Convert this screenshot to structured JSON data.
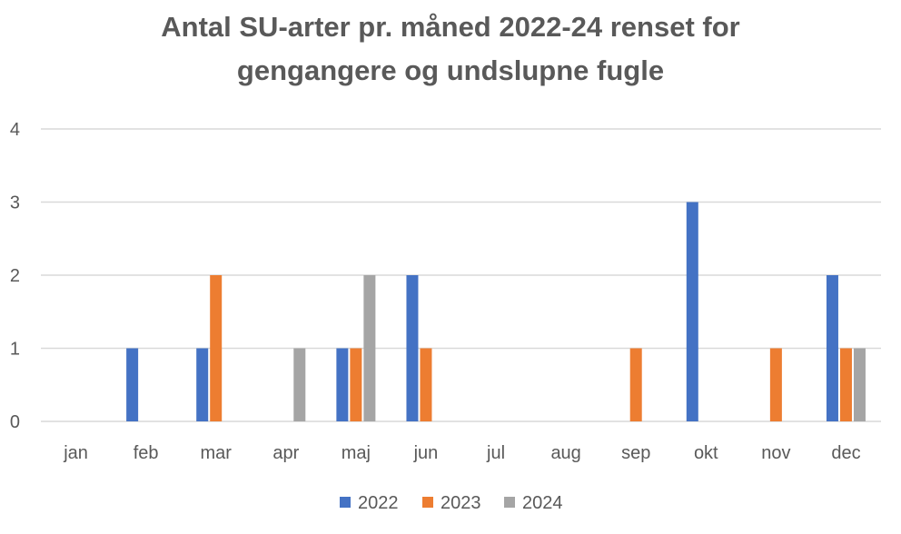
{
  "chart_data": {
    "type": "bar",
    "title": "Antal SU-arter pr. måned 2022-24 renset for",
    "subtitle": "gengangere og undslupne fugle",
    "xlabel": "",
    "ylabel": "",
    "categories": [
      "jan",
      "feb",
      "mar",
      "apr",
      "maj",
      "jun",
      "jul",
      "aug",
      "sep",
      "okt",
      "nov",
      "dec"
    ],
    "series": [
      {
        "name": "2022",
        "color": "#4472C4",
        "values": [
          0,
          1,
          1,
          0,
          1,
          2,
          0,
          0,
          0,
          3,
          0,
          2
        ]
      },
      {
        "name": "2023",
        "color": "#ED7D31",
        "values": [
          0,
          0,
          2,
          0,
          1,
          1,
          0,
          0,
          1,
          0,
          1,
          1
        ]
      },
      {
        "name": "2024",
        "color": "#A5A5A5",
        "values": [
          0,
          0,
          0,
          1,
          2,
          0,
          0,
          0,
          0,
          0,
          0,
          1
        ]
      }
    ],
    "ylim": [
      0,
      4
    ],
    "yticks": [
      "0",
      "1",
      "2",
      "3",
      "4"
    ],
    "grid": true,
    "legend_position": "bottom",
    "colors": {
      "grid": "#D9D9D9",
      "text": "#595959"
    }
  }
}
